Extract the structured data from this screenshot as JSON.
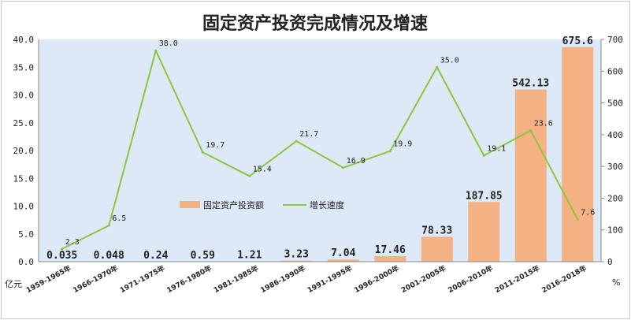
{
  "chart_data": {
    "type": "bar",
    "title": "固定资产投资完成情况及增速",
    "categories": [
      "1959-1965年",
      "1966-1970年",
      "1971-1975年",
      "1976-1980年",
      "1981-1985年",
      "1986-1990年",
      "1991-1995年",
      "1996-2000年",
      "2001-2005年",
      "2006-2010年",
      "2011-2015年",
      "2016-2018年"
    ],
    "series": [
      {
        "name": "固定资产投资额",
        "type": "bar",
        "axis": "right",
        "values": [
          0.035,
          0.048,
          0.24,
          0.59,
          1.21,
          3.23,
          7.04,
          17.46,
          78.33,
          187.85,
          542.13,
          675.6
        ],
        "labels": [
          "0.035",
          "0.048",
          "0.24",
          "0.59",
          "1.21",
          "3.23",
          "7.04",
          "17.46",
          "78.33",
          "187.85",
          "542.13",
          "675.6"
        ],
        "color": "#f4b183"
      },
      {
        "name": "增长速度",
        "type": "line",
        "axis": "left",
        "values": [
          2.3,
          6.5,
          38.0,
          19.7,
          15.4,
          21.7,
          16.9,
          19.9,
          35.0,
          19.1,
          23.6,
          7.6
        ],
        "labels": [
          "2.3",
          "6.5",
          "38.0",
          "19.7",
          "15.4",
          "21.7",
          "16.9",
          "19.9",
          "35.0",
          "19.1",
          "23.6",
          "7.6"
        ],
        "color": "#8cc63f"
      }
    ],
    "yaxis_left": {
      "label": "亿元",
      "ylim": [
        0,
        40
      ],
      "ticks": [
        "0.0",
        "5.0",
        "10.0",
        "15.0",
        "20.0",
        "25.0",
        "30.0",
        "35.0",
        "40.0"
      ]
    },
    "yaxis_right": {
      "label": "%",
      "ylim": [
        0,
        700
      ],
      "ticks": [
        "0",
        "100",
        "200",
        "300",
        "400",
        "500",
        "600",
        "700"
      ]
    },
    "legend_position": "center",
    "grid": false,
    "plot_background": "#dde9f6"
  }
}
